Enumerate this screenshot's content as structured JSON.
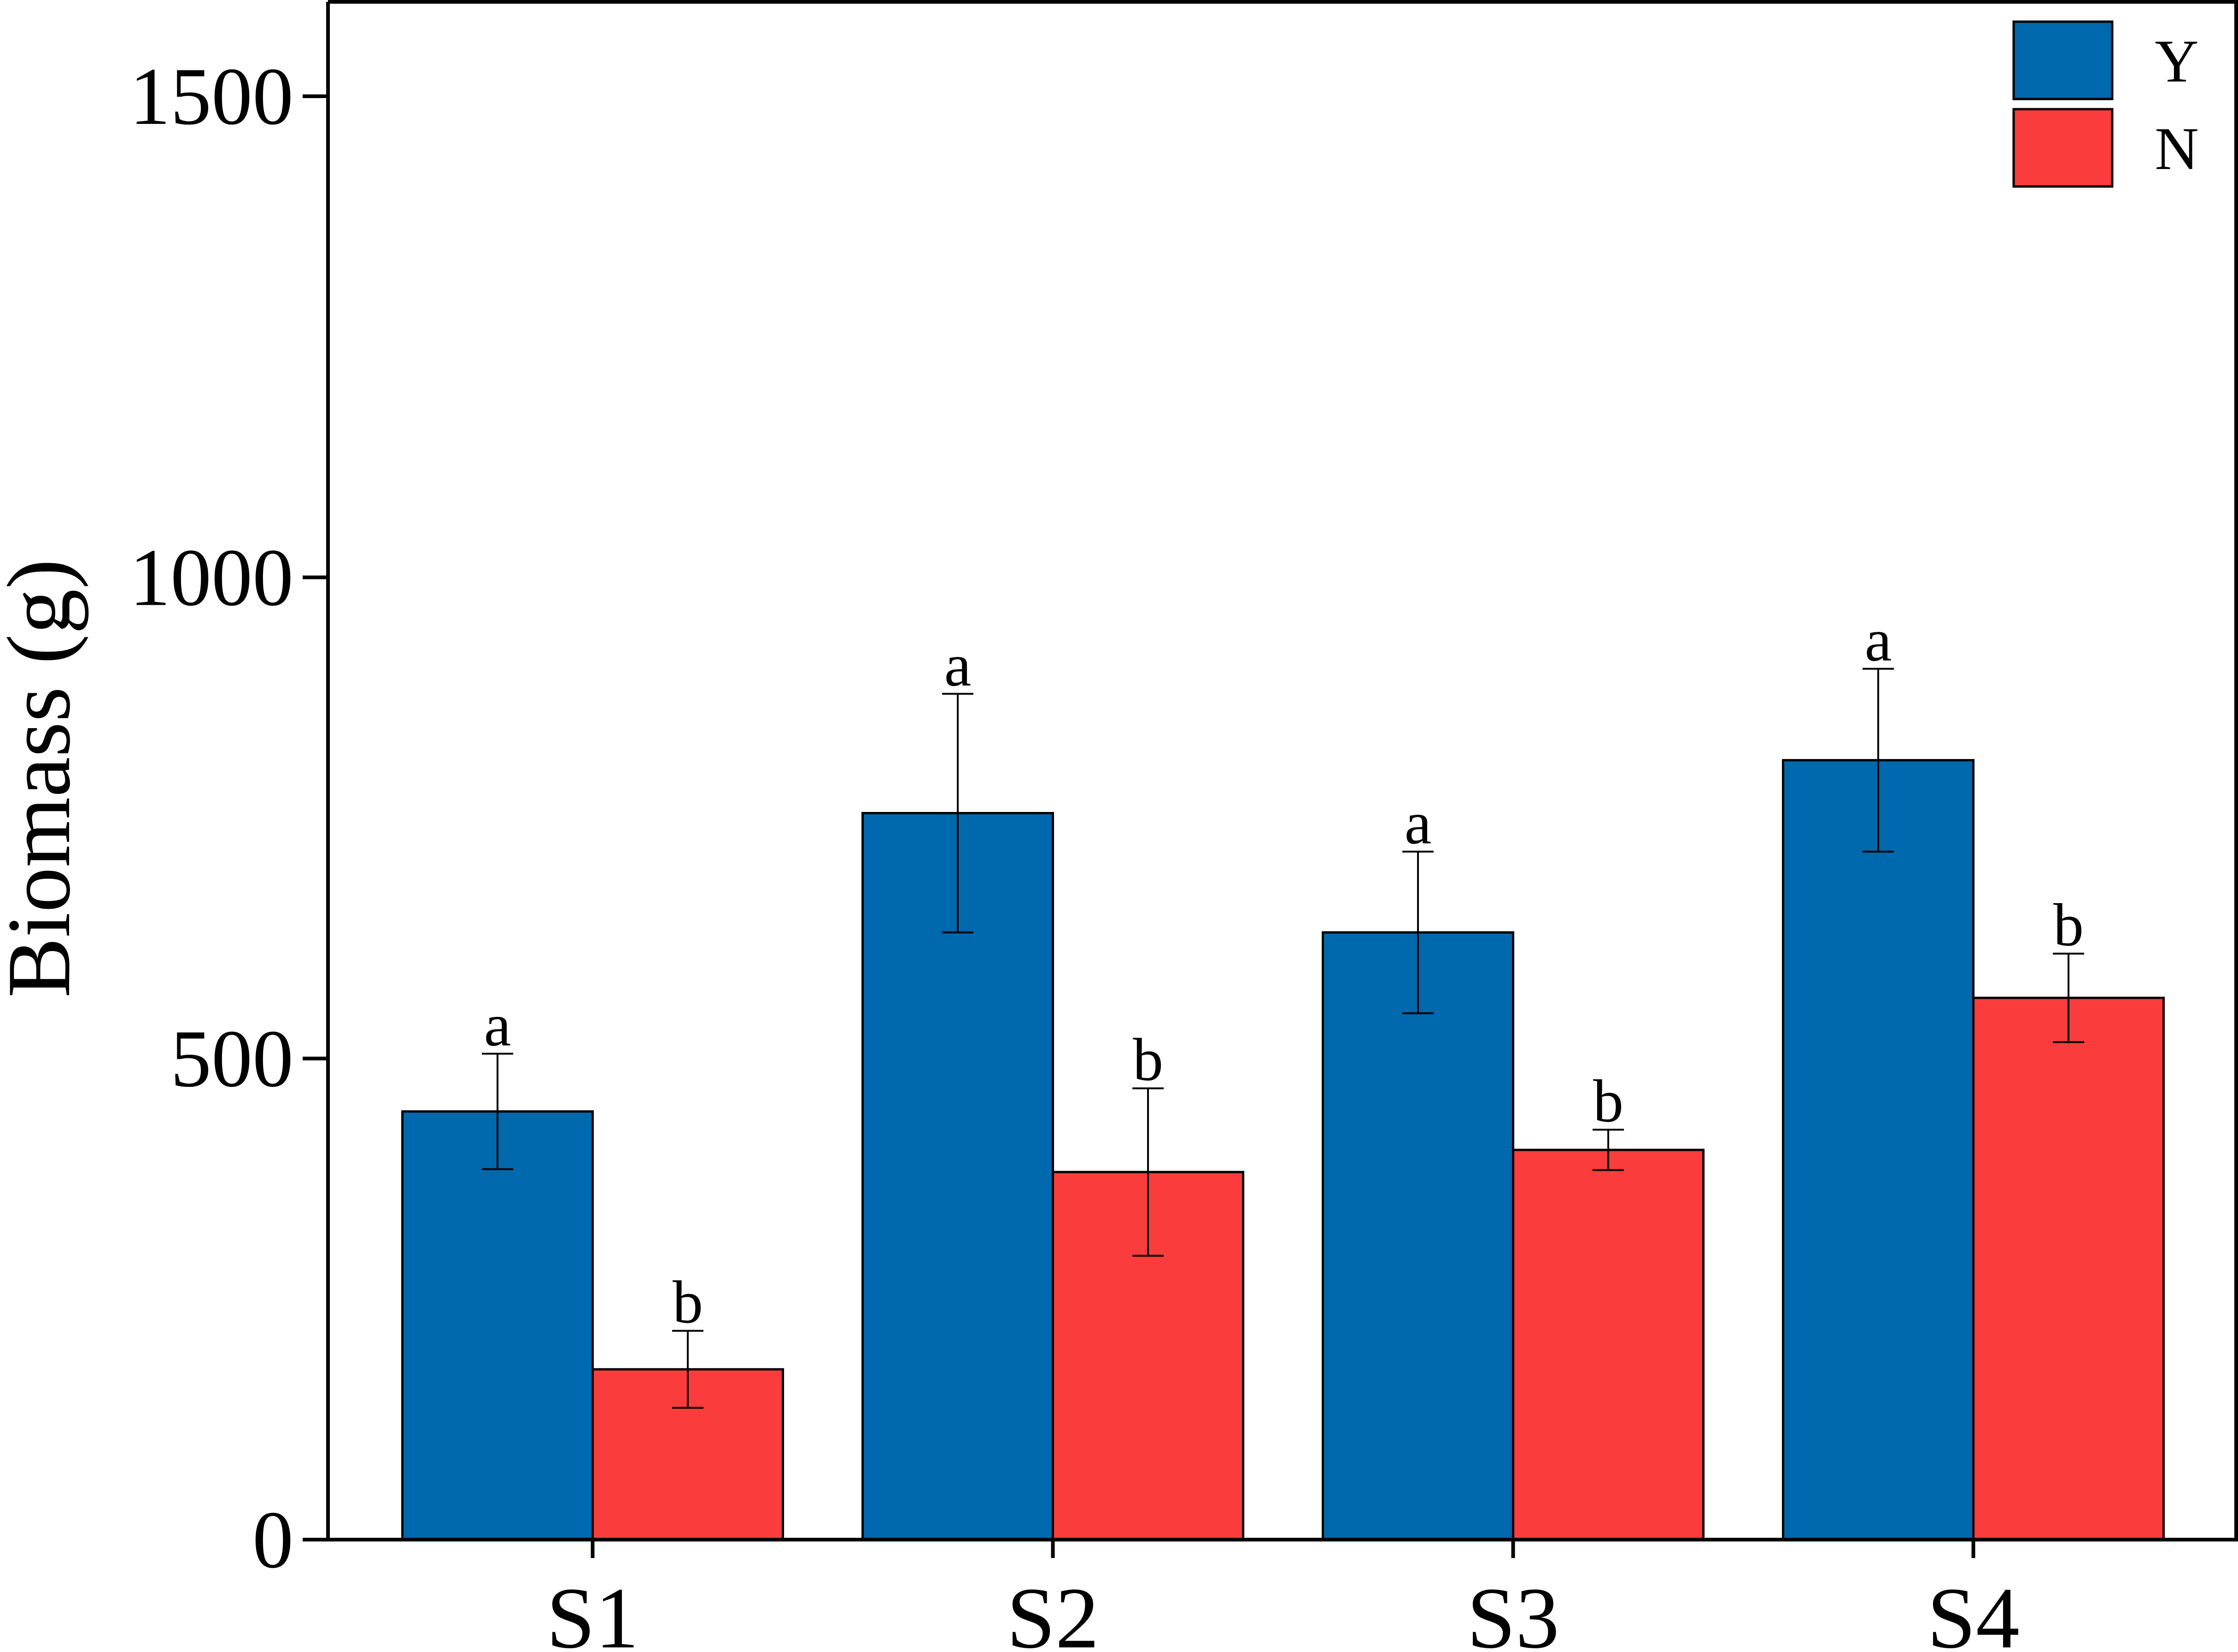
{
  "chart_data": {
    "type": "bar",
    "title": "",
    "xlabel": "",
    "ylabel": "Biomass (g)",
    "categories": [
      "S1",
      "S2",
      "S3",
      "S4"
    ],
    "ylim": [
      0,
      1500
    ],
    "ylim_display_max": 1600,
    "yticks": [
      0,
      500,
      1000,
      1500
    ],
    "grid": false,
    "legend_position": "top-right",
    "series": [
      {
        "name": "Y",
        "color": "#0068AD",
        "values": [
          445,
          755,
          631,
          810
        ],
        "errors": [
          60,
          124,
          84,
          95
        ],
        "letters": [
          "a",
          "a",
          "a",
          "a"
        ]
      },
      {
        "name": "N",
        "color": "#FA3C3C",
        "values": [
          177,
          382,
          405,
          563
        ],
        "errors": [
          40,
          87,
          21,
          46
        ],
        "letters": [
          "b",
          "b",
          "b",
          "b"
        ]
      }
    ]
  }
}
